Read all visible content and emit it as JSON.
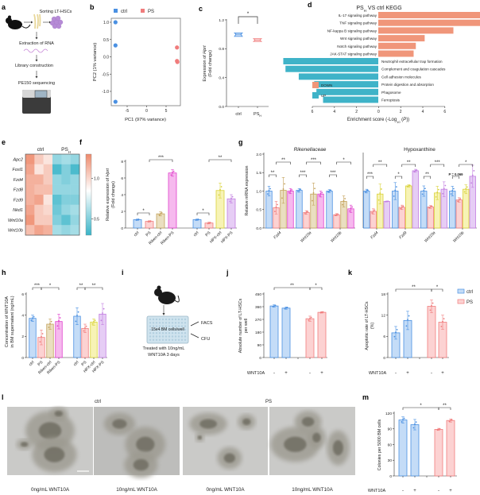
{
  "palette": {
    "ctrl": {
      "stroke": "#4a90e2",
      "fill": "#c4dcf7"
    },
    "PS": {
      "stroke": "#f07c7c",
      "fill": "#fcd2d2"
    },
    "Riken-ctrl": {
      "stroke": "#c4a25a",
      "fill": "#eadfc0"
    },
    "Riken-PS": {
      "stroke": "#e040cc",
      "fill": "#f6b9ee"
    },
    "HPX-ctrl": {
      "stroke": "#d9d23a",
      "fill": "#f7f3b5"
    },
    "HPX-PS": {
      "stroke": "#c27ee0",
      "fill": "#e6cdf5"
    }
  },
  "panel_a": {
    "label": "a",
    "steps": [
      "Sorting LT-HSCs",
      "Extraction of RNA",
      "Library construction",
      "PE150 sequencing"
    ],
    "icons": [
      "mouse-icon",
      "bone-icon",
      "cells-icon",
      "rna-icon",
      "sequencer-icon"
    ]
  },
  "panel_i": {
    "label": "i",
    "plate_text": "15e4 BM cells/well",
    "outputs": [
      "FACS",
      "CFU"
    ],
    "treatment": [
      "Treated with 10ng/mL",
      "WNT10A 3 days"
    ],
    "icons": [
      "mouse-icon",
      "well-plate-icon"
    ]
  },
  "panel_l": {
    "label": "l",
    "groups": [
      "ctrl",
      "PS"
    ],
    "captions": [
      "0ng/mL WNT10A",
      "10ng/mL WNT10A",
      "0ng/mL WNT10A",
      "10ng/mL WNT10A"
    ]
  },
  "chart_data": [
    {
      "panel": "b",
      "type": "scatter",
      "xlabel": "PC1 (97% variance)",
      "ylabel": "PC2 (1% variance)",
      "xticks": [
        "-5",
        "0",
        "5"
      ],
      "xtick_values": [
        -5,
        0,
        5
      ],
      "yticks": [
        "1.0",
        "0.5",
        "0.0",
        "-0.5",
        "-1.0"
      ],
      "ytick_values": [
        1.0,
        0.5,
        0.0,
        -0.5,
        -1.0
      ],
      "legend_position": "top",
      "series": [
        {
          "name": "ctrl",
          "color": "#4a90e2",
          "points": [
            [
              -8,
              1.0
            ],
            [
              -8,
              0.33
            ],
            [
              -8,
              -1.3
            ]
          ]
        },
        {
          "name": "PS",
          "color": "#f07c7c",
          "points": [
            [
              7.8,
              0.27
            ],
            [
              7.8,
              -0.12
            ],
            [
              7.9,
              -0.15
            ]
          ]
        }
      ]
    },
    {
      "panel": "c",
      "type": "violin",
      "ylabel": {
        "pre": "Expression of ",
        "gene": "Hprt",
        "line2": "(Fold change)"
      },
      "yticks": [
        "0.0",
        "0.4",
        "0.8",
        "1.2"
      ],
      "ytick_values": [
        0,
        0.4,
        0.8,
        1.2
      ],
      "categories": [
        {
          "main": "ctrl",
          "sub": ""
        },
        {
          "main": "PS",
          "sub": "H"
        }
      ],
      "values": [
        [
          0.97,
          1.0,
          1.02
        ],
        [
          0.9,
          0.92,
          0.94
        ]
      ],
      "colors": [
        "#4a90e2",
        "#f07c7c"
      ],
      "significance": [
        {
          "a": 0,
          "b": 1,
          "label": "*"
        }
      ]
    },
    {
      "panel": "d",
      "type": "bar",
      "title": {
        "pre": "PS",
        "sub": "H",
        "post": " VS ctrl  KEGG"
      },
      "xlabel": {
        "pre": "Enrichment score (-Log",
        "sub": "10",
        "mid": " (",
        "italic": "P",
        "post": "))"
      },
      "xticks": [
        "6",
        "4",
        "2",
        "0",
        "2",
        "4",
        "6"
      ],
      "legend": [
        {
          "name": "DOWN",
          "color": "#f0967a"
        },
        {
          "name": "UP",
          "color": "#3fb3c8"
        }
      ],
      "down": [
        {
          "term": "IL-17 signaling pathway",
          "value": 5.5
        },
        {
          "term": "TNF signaling pathway",
          "value": 4.7
        },
        {
          "term": "NF-kappa B signaling pathway",
          "value": 3.4
        },
        {
          "term": "Wnt signaling pathway",
          "value": 2.1
        },
        {
          "term": "Notch signaling pathway",
          "value": 1.7
        },
        {
          "term": "JAK-STAT signaling pathway",
          "value": 1.6
        }
      ],
      "up": [
        {
          "term": "Neutrophil extracellular trap formation",
          "value": 4.3
        },
        {
          "term": "Complement and coagulation cascades",
          "value": 4.2
        },
        {
          "term": "Cell adhesion molecules",
          "value": 3.6
        },
        {
          "term": "Protein digestion and absorption",
          "value": 2.9
        },
        {
          "term": "Phagosome",
          "value": 2.8
        },
        {
          "term": "Ferroptosis",
          "value": 2.5
        }
      ]
    },
    {
      "panel": "e",
      "type": "heatmap",
      "col_groups": [
        {
          "main": "ctrl",
          "sub": ""
        },
        {
          "main": "PS",
          "sub": "H"
        }
      ],
      "rows": [
        "Apc2",
        "Fosl1",
        "Fzd4",
        "Fzd8",
        "Fzd9",
        "Nkd1",
        "Wnt10a",
        "Wnt10b"
      ],
      "values": [
        [
          1.25,
          1.05,
          0.95,
          0.55,
          0.6,
          0.55
        ],
        [
          1.2,
          0.95,
          1.05,
          0.35,
          0.5,
          0.35
        ],
        [
          1.15,
          1.15,
          1.05,
          0.55,
          0.5,
          0.55
        ],
        [
          1.15,
          1.1,
          1.1,
          0.55,
          0.55,
          0.55
        ],
        [
          1.15,
          1.2,
          0.95,
          0.4,
          0.5,
          0.5
        ],
        [
          1.2,
          1.05,
          1.0,
          0.45,
          0.55,
          0.6
        ],
        [
          1.25,
          1.05,
          1.05,
          0.5,
          0.4,
          0.55
        ],
        [
          1.1,
          1.2,
          1.15,
          0.6,
          0.55,
          0.6
        ]
      ],
      "color_range": [
        0.3,
        1.3
      ],
      "colorbar_ticks": [
        "1.0",
        "0.5"
      ],
      "colorbar_tick_values": [
        1.0,
        0.5
      ],
      "colors": {
        "low": "#3ab4c8",
        "mid": "#ffffff",
        "high": "#ee8a6c"
      }
    },
    {
      "panel": "f",
      "type": "bar",
      "ylabel": {
        "pre": "Relative expression of ",
        "gene": "Hprt",
        "line2": "(Fold change)"
      },
      "yticks": [
        "0",
        "2",
        "4",
        "6",
        "8"
      ],
      "ylim": [
        0,
        8
      ],
      "categories": [
        "ctrl",
        "PS",
        "Riken-ctrl",
        "Riken-PS",
        "ctrl",
        "PS",
        "HPX-ctrl",
        "HPX-PS"
      ],
      "keys": [
        "ctrl",
        "PS",
        "Riken-ctrl",
        "Riken-PS",
        "ctrl",
        "PS",
        "HPX-ctrl",
        "HPX-PS"
      ],
      "values": [
        1.0,
        0.8,
        1.7,
        6.6,
        1.0,
        0.6,
        4.5,
        3.5
      ],
      "errors": [
        0.08,
        0.08,
        0.25,
        0.4,
        0.08,
        0.1,
        0.9,
        0.5
      ],
      "significance": [
        {
          "a": 0,
          "b": 1,
          "label": "*"
        },
        {
          "a": 1,
          "b": 3,
          "label": "***"
        },
        {
          "a": 4,
          "b": 5,
          "label": "*"
        },
        {
          "a": 5,
          "b": 7,
          "label": "**"
        }
      ]
    },
    {
      "panel": "g",
      "type": "bar",
      "title": "Rikenellaceae",
      "ylabel": "Relative mRNA expression",
      "yticks": [
        "0.0",
        "0.5",
        "1.0",
        "1.5",
        "2.0"
      ],
      "ylim": [
        0,
        2
      ],
      "groups": [
        "Fzd4",
        "Wnt10a",
        "Wnt10b"
      ],
      "keys": [
        "ctrl",
        "PS",
        "Riken-ctrl",
        "Riken-PS"
      ],
      "values": [
        [
          1.0,
          0.55,
          1.02,
          1.0
        ],
        [
          1.02,
          0.42,
          0.92,
          0.92
        ],
        [
          1.0,
          0.36,
          0.72,
          0.52
        ]
      ],
      "errors": [
        [
          0.13,
          0.17,
          0.35,
          0.07
        ],
        [
          0.05,
          0.05,
          0.3,
          0.08
        ],
        [
          0.04,
          0.03,
          0.15,
          0.1
        ]
      ],
      "significance": [
        {
          "g": 0,
          "a": 0,
          "b": 1,
          "label": "**"
        },
        {
          "g": 0,
          "a": 1,
          "b": 3,
          "label": "**"
        },
        {
          "g": 1,
          "a": 0,
          "b": 1,
          "label": "***"
        },
        {
          "g": 1,
          "a": 1,
          "b": 3,
          "label": "***"
        },
        {
          "g": 2,
          "a": 0,
          "b": 1,
          "label": "***"
        },
        {
          "g": 2,
          "a": 1,
          "b": 3,
          "label": "*"
        }
      ]
    },
    {
      "panel": "g",
      "type": "bar",
      "title": "Hypoxanthine",
      "yticks": [],
      "ylim": [
        0,
        2
      ],
      "groups": [
        "Fzd4",
        "Fzd9",
        "Wnt10a",
        "Wnt10b"
      ],
      "keys": [
        "ctrl",
        "PS",
        "HPX-ctrl",
        "HPX-PS"
      ],
      "values": [
        [
          1.0,
          0.45,
          0.92,
          0.72
        ],
        [
          1.0,
          0.56,
          1.14,
          1.55
        ],
        [
          1.0,
          0.57,
          0.95,
          1.05
        ],
        [
          1.0,
          0.76,
          1.05,
          1.4
        ]
      ],
      "errors": [
        [
          0.05,
          0.07,
          0.27,
          0.01
        ],
        [
          0.23,
          0.06,
          0.03,
          0.04
        ],
        [
          0.14,
          0.04,
          0.18,
          0.2
        ],
        [
          0.13,
          0.06,
          0.12,
          0.3
        ]
      ],
      "significance": [
        {
          "g": 0,
          "a": 0,
          "b": 1,
          "label": "***"
        },
        {
          "g": 0,
          "a": 1,
          "b": 3,
          "label": "**"
        },
        {
          "g": 1,
          "a": 0,
          "b": 1,
          "label": "*"
        },
        {
          "g": 1,
          "a": 1,
          "b": 3,
          "label": "**"
        },
        {
          "g": 2,
          "a": 0,
          "b": 1,
          "label": "**"
        },
        {
          "g": 2,
          "a": 1,
          "b": 3,
          "label": "***"
        },
        {
          "g": 3,
          "a": 0,
          "b": 1,
          "label": "P = 0.069"
        },
        {
          "g": 3,
          "a": 1,
          "b": 3,
          "label": "*"
        }
      ]
    },
    {
      "panel": "h",
      "type": "bar",
      "ylabel": [
        "Concentration of WNT10A",
        "in BM supernatant (ng/mL)"
      ],
      "yticks": [
        "0",
        "2",
        "4",
        "6"
      ],
      "ylim": [
        0,
        6
      ],
      "categories": [
        "ctrl",
        "PS",
        "Riken-ctrl",
        "Riken-PS",
        "ctrl",
        "PS",
        "HPX-ctrl",
        "HPX-PS"
      ],
      "keys": [
        "ctrl",
        "PS",
        "Riken-ctrl",
        "Riken-PS",
        "ctrl",
        "PS",
        "HPX-ctrl",
        "HPX-PS"
      ],
      "values": [
        3.7,
        1.9,
        3.15,
        3.4,
        3.9,
        2.75,
        3.35,
        4.1
      ],
      "errors": [
        0.3,
        0.7,
        0.5,
        0.7,
        0.8,
        0.4,
        0.3,
        1.0
      ],
      "significance": [
        {
          "a": 0,
          "b": 1,
          "label": "***"
        },
        {
          "a": 1,
          "b": 3,
          "label": "*"
        },
        {
          "a": 4,
          "b": 5,
          "label": "**"
        },
        {
          "a": 5,
          "b": 7,
          "label": "**"
        }
      ]
    },
    {
      "panel": "j",
      "type": "bar",
      "ylabel": [
        "Absolute number of LT-HSCs",
        "per well"
      ],
      "yticks": [
        "0",
        "90",
        "180",
        "270",
        "360",
        "450"
      ],
      "ylim": [
        0,
        450
      ],
      "treatment_label": "WNT10A",
      "treatment": [
        "-",
        "+",
        "-",
        "+"
      ],
      "keys": [
        "ctrl",
        "ctrl",
        "PS",
        "PS"
      ],
      "values": [
        365,
        350,
        275,
        320
      ],
      "errors": [
        8,
        8,
        18,
        5
      ],
      "significance": [
        {
          "a": 0,
          "b": 2,
          "label": "**"
        },
        {
          "a": 2,
          "b": 3,
          "label": "*"
        }
      ]
    },
    {
      "panel": "k",
      "type": "bar",
      "ylabel": [
        "Apoptotic rate of LT-HSCs",
        "(%)"
      ],
      "yticks": [
        "0",
        "6",
        "12",
        "18"
      ],
      "ylim": [
        0,
        18
      ],
      "treatment_label": "WNT10A",
      "treatment": [
        "-",
        "+",
        "-",
        "+"
      ],
      "keys": [
        "ctrl",
        "ctrl",
        "PS",
        "PS"
      ],
      "values": [
        7,
        10.5,
        14.5,
        10
      ],
      "errors": [
        1.8,
        2.6,
        1.8,
        2.0
      ],
      "legend": [
        "ctrl",
        "PS"
      ],
      "legend_position": "right",
      "significance": [
        {
          "a": 0,
          "b": 2,
          "label": "**"
        },
        {
          "a": 2,
          "b": 3,
          "label": "*"
        }
      ]
    },
    {
      "panel": "m",
      "type": "bar",
      "ylabel": [
        "Colonies per 5000 BM cells"
      ],
      "yticks": [
        "0",
        "30",
        "60",
        "90",
        "120"
      ],
      "ylim": [
        0,
        120
      ],
      "treatment_label": "WNT10A",
      "treatment": [
        "-",
        "+",
        "-",
        "+"
      ],
      "keys": [
        "ctrl",
        "ctrl",
        "PS",
        "PS"
      ],
      "values": [
        107,
        98,
        89,
        106
      ],
      "errors": [
        6,
        10,
        2,
        3
      ],
      "significance": [
        {
          "a": 0,
          "b": 2,
          "label": "*"
        },
        {
          "a": 2,
          "b": 3,
          "label": "**"
        }
      ]
    }
  ],
  "panel_letters": [
    "a",
    "b",
    "c",
    "d",
    "e",
    "f",
    "g",
    "h",
    "i",
    "j",
    "k",
    "l",
    "m"
  ]
}
